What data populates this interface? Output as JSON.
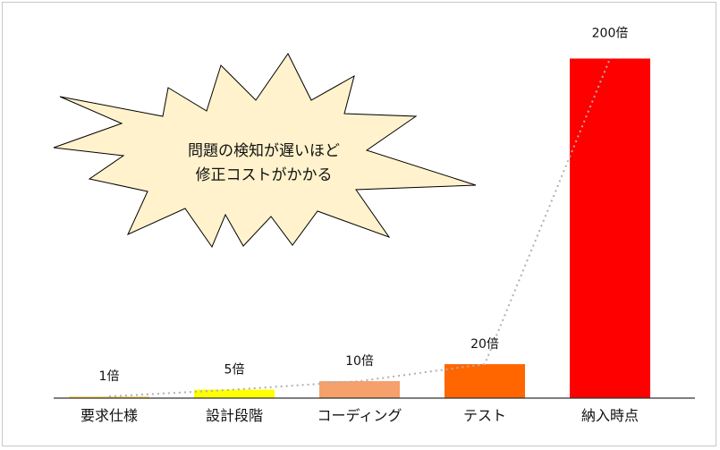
{
  "chart_data": {
    "type": "bar",
    "categories": [
      "要求仕様",
      "設計段階",
      "コーディング",
      "テスト",
      "納入時点"
    ],
    "values": [
      1,
      5,
      10,
      20,
      200
    ],
    "data_labels": [
      "1倍",
      "5倍",
      "10倍",
      "20倍",
      "200倍"
    ],
    "colors": [
      "#ffd966",
      "#ffff00",
      "#f6a06b",
      "#ff6600",
      "#ff0000"
    ],
    "ylim": [
      0,
      215
    ],
    "trendline": "dotted",
    "title": "",
    "xlabel": "",
    "ylabel": "",
    "grid": false
  },
  "callout": {
    "shape": "explosion",
    "fill": "#fff2cc",
    "lines": [
      "問題の検知が遅いほど",
      "修正コストがかかる"
    ]
  }
}
